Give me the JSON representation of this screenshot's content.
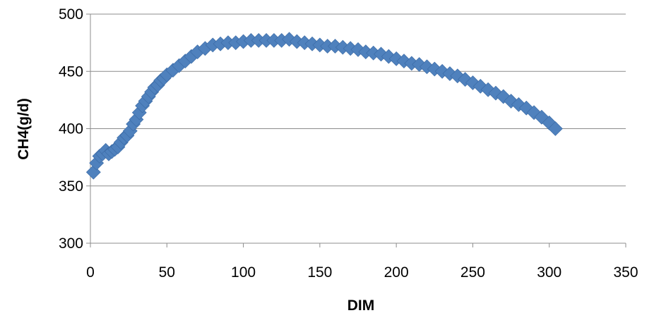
{
  "chart_data": {
    "type": "scatter",
    "xlabel": "DIM",
    "ylabel": "CH4(g/d)",
    "xlim": [
      0,
      350
    ],
    "ylim": [
      300,
      500
    ],
    "xticks": [
      0,
      50,
      100,
      150,
      200,
      250,
      300,
      350
    ],
    "yticks": [
      300,
      350,
      400,
      450,
      500
    ],
    "grid": "horizontal",
    "legend": "none",
    "marker": "diamond",
    "color": "#4f81bd",
    "series": [
      {
        "x": [
          2,
          4,
          6,
          8,
          10,
          12,
          14,
          16,
          18,
          20,
          22,
          24,
          26,
          28,
          30,
          32,
          34,
          36,
          38,
          40,
          42,
          44,
          46,
          48,
          50,
          54,
          58,
          62,
          66,
          70,
          75,
          80,
          85,
          90,
          95,
          100,
          105,
          110,
          115,
          120,
          125,
          130,
          135,
          140,
          145,
          150,
          155,
          160,
          165,
          170,
          175,
          180,
          185,
          190,
          195,
          200,
          205,
          210,
          215,
          220,
          225,
          230,
          235,
          240,
          245,
          250,
          255,
          260,
          265,
          270,
          275,
          280,
          285,
          290,
          295,
          300,
          304
        ],
        "y": [
          362,
          370,
          376,
          378,
          381,
          378,
          380,
          382,
          384,
          388,
          392,
          394,
          398,
          404,
          408,
          414,
          420,
          424,
          428,
          432,
          436,
          438,
          442,
          444,
          447,
          451,
          455,
          459,
          463,
          467,
          470,
          473,
          474,
          475,
          475,
          476,
          477,
          477,
          477,
          477,
          477,
          478,
          476,
          475,
          474,
          473,
          472,
          472,
          471,
          470,
          469,
          467,
          466,
          465,
          463,
          461,
          459,
          457,
          456,
          454,
          452,
          450,
          448,
          446,
          443,
          440,
          437,
          434,
          431,
          428,
          424,
          421,
          418,
          414,
          410,
          405,
          400
        ]
      }
    ]
  }
}
